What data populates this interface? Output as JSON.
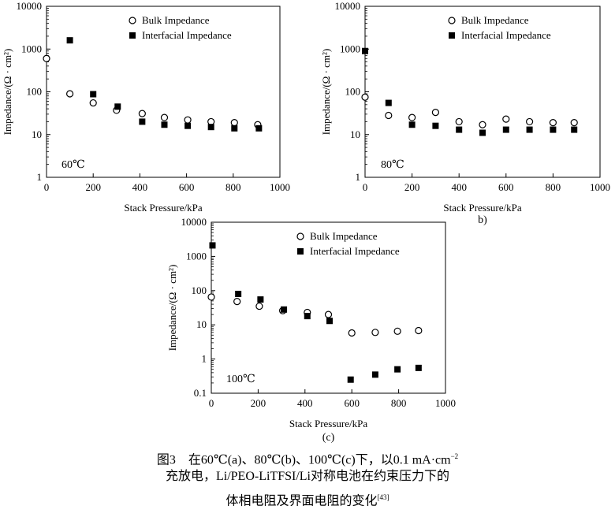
{
  "chart_data": [
    {
      "type": "scatter",
      "panel_label": "",
      "temperature_label": "60℃",
      "xlabel": "Stack Pressure/kPa",
      "ylabel": "Impedance/(Ω · cm²)",
      "xlim": [
        0,
        1000
      ],
      "ylim": [
        1,
        10000
      ],
      "yscale": "log",
      "xticks": [
        0,
        200,
        400,
        600,
        800,
        1000
      ],
      "yticks": [
        1,
        10,
        100,
        1000,
        10000
      ],
      "ytick_labels": [
        "1",
        "10",
        "100",
        "1000",
        "10000"
      ],
      "legend_position": "top-right",
      "series": [
        {
          "name": "Bulk Impedance",
          "marker": "open-circle",
          "x": [
            0,
            100,
            200,
            300,
            410,
            505,
            605,
            705,
            805,
            905
          ],
          "y": [
            600,
            90,
            55,
            37,
            31,
            25,
            22,
            20,
            19,
            17
          ]
        },
        {
          "name": "Interfacial Impedance",
          "marker": "filled-square",
          "x": [
            100,
            200,
            305,
            410,
            505,
            605,
            705,
            805,
            910
          ],
          "y": [
            1600,
            88,
            45,
            20,
            17,
            16,
            15,
            14,
            14
          ]
        }
      ]
    },
    {
      "type": "scatter",
      "panel_label": "b)",
      "temperature_label": "80℃",
      "xlabel": "Stack Pressure/kPa",
      "ylabel": "Impedance/(Ω · cm²)",
      "xlim": [
        0,
        1000
      ],
      "ylim": [
        1,
        10000
      ],
      "yscale": "log",
      "xticks": [
        0,
        200,
        400,
        600,
        800,
        1000
      ],
      "yticks": [
        1,
        10,
        100,
        1000,
        10000
      ],
      "ytick_labels": [
        "1",
        "10",
        "100",
        "1000",
        "10000"
      ],
      "legend_position": "top-right",
      "series": [
        {
          "name": "Bulk Impedance",
          "marker": "open-circle",
          "x": [
            0,
            100,
            200,
            300,
            400,
            500,
            600,
            700,
            800,
            890
          ],
          "y": [
            75,
            28,
            25,
            33,
            20,
            17,
            23,
            20,
            19,
            19
          ]
        },
        {
          "name": "Interfacial Impedance",
          "marker": "filled-square",
          "x": [
            0,
            100,
            200,
            300,
            400,
            500,
            600,
            700,
            800,
            890
          ],
          "y": [
            900,
            55,
            17,
            16,
            13,
            11,
            13,
            13,
            13,
            13
          ]
        }
      ]
    },
    {
      "type": "scatter",
      "panel_label": "(c)",
      "temperature_label": "100℃",
      "xlabel": "Stack Pressure/kPa",
      "ylabel": "Impedance/(Ω · cm²)",
      "xlim": [
        0,
        1000
      ],
      "ylim": [
        0.1,
        10000
      ],
      "yscale": "log",
      "xticks": [
        0,
        200,
        400,
        600,
        800,
        1000
      ],
      "yticks": [
        0.1,
        1,
        10,
        100,
        1000,
        10000
      ],
      "ytick_labels": [
        "0.1",
        "1",
        "10",
        "100",
        "1000",
        "10000"
      ],
      "legend_position": "top-right",
      "series": [
        {
          "name": "Bulk Impedance",
          "marker": "open-circle",
          "x": [
            0,
            110,
            205,
            305,
            410,
            500,
            600,
            700,
            795,
            885
          ],
          "y": [
            65,
            48,
            35,
            26,
            23,
            20,
            5.8,
            6.0,
            6.5,
            6.8
          ]
        },
        {
          "name": "Interfacial Impedance",
          "marker": "filled-square",
          "x": [
            5,
            115,
            210,
            310,
            410,
            505,
            595,
            700,
            795,
            885
          ],
          "y": [
            2100,
            80,
            55,
            28,
            18,
            13,
            0.25,
            0.35,
            0.5,
            0.55
          ]
        }
      ]
    }
  ],
  "caption": {
    "line1_prefix": "图3　在60℃(a)、80℃(b)、100℃(c)下，以0.1 mA·cm",
    "line1_sup": "−2",
    "line2": "充放电，Li/PEO-LiTFSI/Li对称电池在约束压力下的",
    "line3": "体相电阻及界面电阻的变化",
    "ref": "[43]"
  }
}
